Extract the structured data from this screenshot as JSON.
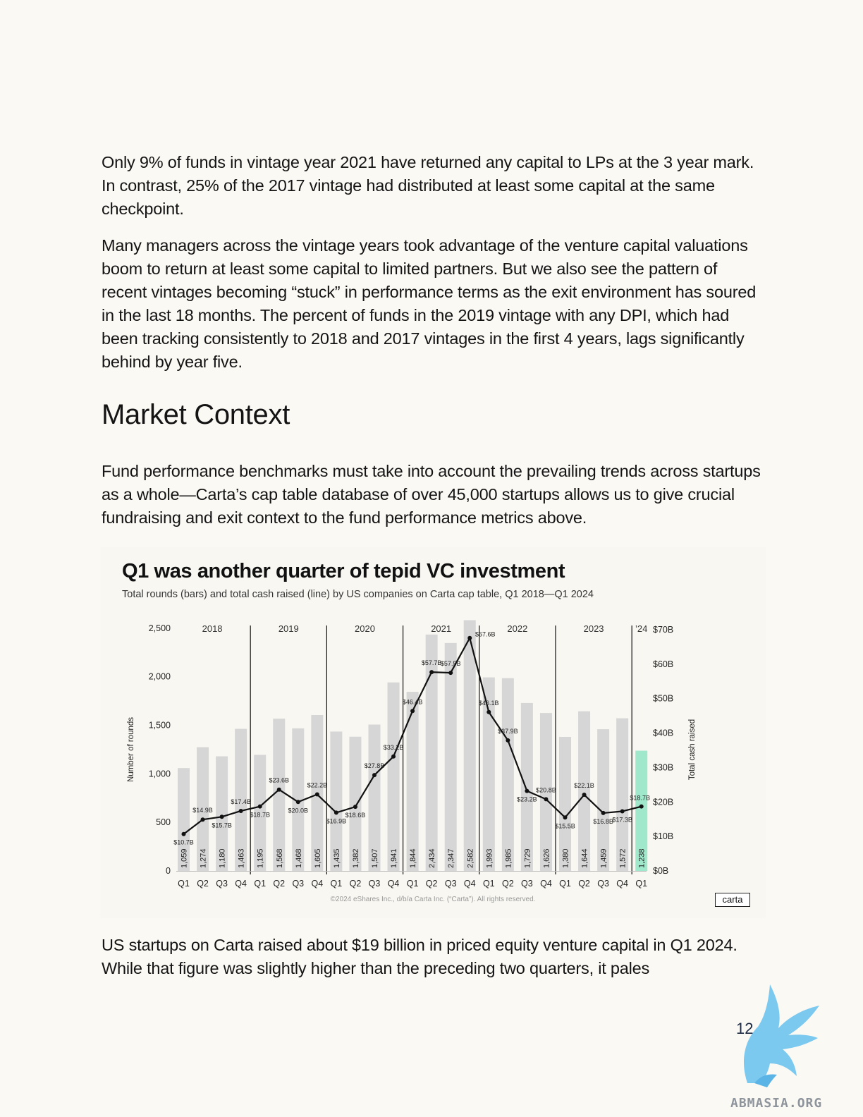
{
  "paragraphs": {
    "p1": "Only 9% of funds in vintage year 2021 have returned any capital to LPs at the 3 year mark. In contrast, 25% of the 2017 vintage had distributed at least some capital at the same checkpoint.",
    "p2": "Many managers across the vintage years took advantage of the venture capital valuations boom to return at least some capital to limited partners. But we also see the pattern of recent vintages becoming “stuck” in performance terms as the exit environment has soured in the last 18 months. The percent of funds in the 2019 vintage with any DPI, which had been tracking consistently to 2018 and 2017 vintages in the first 4 years, lags significantly behind by year five.",
    "p3": "Fund performance benchmarks must take into account the prevailing trends across startups as a whole—Carta’s cap table database of over 45,000 startups allows us to give crucial fundraising and exit context to the fund performance metrics above.",
    "p4": "US startups on Carta raised about $19 billion in priced equity venture capital in Q1 2024. While that figure was slightly higher than the preceding two quarters, it pales"
  },
  "heading": "Market Context",
  "chart": {
    "copyright": "©2024 eShares Inc., d/b/a Carta Inc. (“Carta”). All rights reserved.",
    "logo_text": "carta"
  },
  "chart_data": {
    "type": "bar",
    "title": "Q1 was another quarter of tepid VC investment",
    "subtitle": "Total rounds (bars) and total cash raised (line) by US companies on Carta cap table, Q1 2018—Q1 2024",
    "ylabel": "Number of rounds",
    "y2label": "Total cash raised",
    "ylim": [
      0,
      2600
    ],
    "y2lim": [
      0,
      70
    ],
    "yticks": [
      "0",
      "500",
      "1,000",
      "1,500",
      "2,000",
      "2,500"
    ],
    "y2ticks": [
      "$0B",
      "$10B",
      "$20B",
      "$30B",
      "$40B",
      "$50B",
      "$60B",
      "$70B"
    ],
    "years": [
      "2018",
      "2019",
      "2020",
      "2021",
      "2022",
      "2023",
      "’24"
    ],
    "categories": [
      "Q1",
      "Q2",
      "Q3",
      "Q4",
      "Q1",
      "Q2",
      "Q3",
      "Q4",
      "Q1",
      "Q2",
      "Q3",
      "Q4",
      "Q1",
      "Q2",
      "Q3",
      "Q4",
      "Q1",
      "Q2",
      "Q3",
      "Q4",
      "Q1",
      "Q2",
      "Q3",
      "Q4",
      "Q1"
    ],
    "series": [
      {
        "name": "Number of rounds",
        "type": "bar",
        "values": [
          1059,
          1274,
          1180,
          1463,
          1195,
          1568,
          1468,
          1605,
          1435,
          1382,
          1507,
          1941,
          1844,
          2434,
          2347,
          2582,
          1993,
          1985,
          1729,
          1626,
          1380,
          1644,
          1459,
          1572,
          1238
        ],
        "labels": [
          "1,059",
          "1,274",
          "1,180",
          "1,463",
          "1,195",
          "1,568",
          "1,468",
          "1,605",
          "1,435",
          "1,382",
          "1,507",
          "1,941",
          "1,844",
          "2,434",
          "2,347",
          "2,582",
          "1,993",
          "1,985",
          "1,729",
          "1,626",
          "1,380",
          "1,644",
          "1,459",
          "1,572",
          "1,238"
        ]
      },
      {
        "name": "Total cash raised",
        "type": "line",
        "values": [
          10.7,
          14.9,
          15.7,
          17.4,
          18.7,
          23.6,
          20.0,
          22.2,
          16.9,
          18.6,
          27.8,
          33.2,
          46.4,
          57.7,
          57.5,
          67.6,
          46.1,
          37.9,
          23.2,
          20.8,
          15.5,
          22.1,
          16.8,
          17.3,
          18.7
        ],
        "labels": [
          "$10.7B",
          "$14.9B",
          "$15.7B",
          "$17.4B",
          "$18.7B",
          "$23.6B",
          "$20.0B",
          "$22.2B",
          "$16.9B",
          "$18.6B",
          "$27.8B",
          "$33.2B",
          "$46.4B",
          "$57.7B",
          "$57.5B",
          "$67.6B",
          "$46.1B",
          "$37.9B",
          "$23.2B",
          "$20.8B",
          "$15.5B",
          "$22.1B",
          "$16.8B",
          "$17.3B",
          "$18.7B"
        ]
      }
    ],
    "colors": {
      "bar": "#d6d6d6",
      "bar_highlight": "#9fe8cb",
      "line": "#111111"
    },
    "grid": false
  },
  "page_number": "12",
  "watermark": "ABMASIA.ORG"
}
